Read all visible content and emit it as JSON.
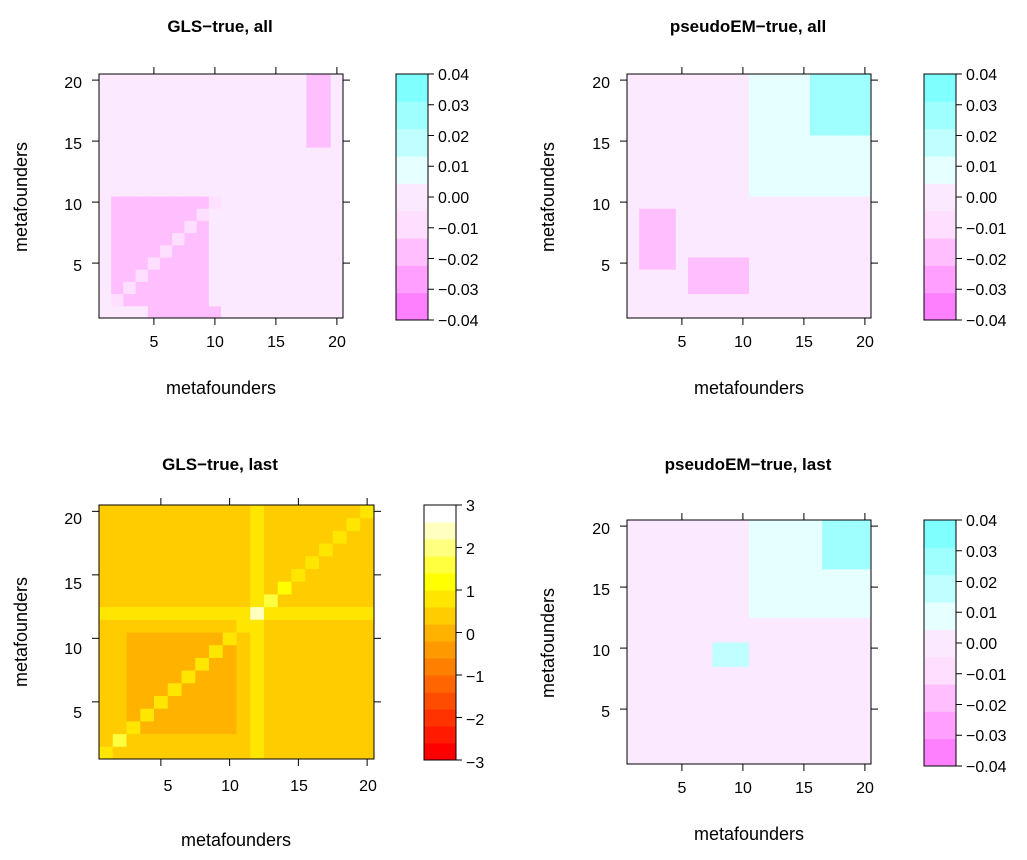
{
  "chart_data": [
    {
      "type": "heatmap",
      "title": "GLS−true, all",
      "xlabel": "metafounders",
      "ylabel": "metafounders",
      "x_ticks": [
        "5",
        "10",
        "15",
        "20"
      ],
      "y_ticks": [
        "5",
        "10",
        "15",
        "20"
      ],
      "xlim": [
        0.5,
        20.5
      ],
      "ylim": [
        0.5,
        20.5
      ],
      "colorbar": {
        "ticks": [
          "0.04",
          "0.03",
          "0.02",
          "0.01",
          "0.00",
          "−0.01",
          "−0.02",
          "−0.03",
          "−0.04"
        ],
        "range": [
          -0.04,
          0.04
        ],
        "colors": [
          "#ff80ff",
          "#ff9fff",
          "#ffbfff",
          "#ffdfff",
          "#fbe9ff",
          "#e6ffff",
          "#bfffff",
          "#9fffff",
          "#80ffff"
        ]
      },
      "pattern": "gls_all",
      "background_value": -0.005
    },
    {
      "type": "heatmap",
      "title": "pseudoEM−true, all",
      "xlabel": "metafounders",
      "ylabel": "metafounders",
      "x_ticks": [
        "5",
        "10",
        "15",
        "20"
      ],
      "y_ticks": [
        "5",
        "10",
        "15",
        "20"
      ],
      "xlim": [
        0.5,
        20.5
      ],
      "ylim": [
        0.5,
        20.5
      ],
      "colorbar": {
        "ticks": [
          "0.04",
          "0.03",
          "0.02",
          "0.01",
          "0.00",
          "−0.01",
          "−0.02",
          "−0.03",
          "−0.04"
        ],
        "range": [
          -0.04,
          0.04
        ],
        "colors": [
          "#ff80ff",
          "#ff9fff",
          "#ffbfff",
          "#ffdfff",
          "#fbe9ff",
          "#e6ffff",
          "#bfffff",
          "#9fffff",
          "#80ffff"
        ]
      },
      "pattern": "pem_all",
      "background_value": 0.005
    },
    {
      "type": "heatmap",
      "title": "GLS−true, last",
      "xlabel": "metafounders",
      "ylabel": "metafounders",
      "x_ticks": [
        "5",
        "10",
        "15",
        "20"
      ],
      "y_ticks": [
        "5",
        "10",
        "15",
        "20"
      ],
      "xlim": [
        0.5,
        20.5
      ],
      "ylim": [
        0.5,
        20.5
      ],
      "colorbar": {
        "ticks": [
          "3",
          "2",
          "1",
          "0",
          "−1",
          "−2",
          "−3"
        ],
        "range": [
          -3,
          3
        ],
        "colors": [
          "#ff0000",
          "#ff1a00",
          "#ff3300",
          "#ff4d00",
          "#ff6600",
          "#ff8000",
          "#ff9900",
          "#ffb300",
          "#ffcc00",
          "#ffe600",
          "#ffff00",
          "#ffff40",
          "#ffff80",
          "#ffffbf",
          "#ffffff"
        ]
      },
      "pattern": "gls_last",
      "background_value": 0.1
    },
    {
      "type": "heatmap",
      "title": "pseudoEM−true, last",
      "xlabel": "metafounders",
      "ylabel": "metafounders",
      "x_ticks": [
        "5",
        "10",
        "15",
        "20"
      ],
      "y_ticks": [
        "5",
        "10",
        "15",
        "20"
      ],
      "xlim": [
        0.5,
        20.5
      ],
      "ylim": [
        0.5,
        20.5
      ],
      "colorbar": {
        "ticks": [
          "0.04",
          "0.03",
          "0.02",
          "0.01",
          "0.00",
          "−0.01",
          "−0.02",
          "−0.03",
          "−0.04"
        ],
        "range": [
          -0.04,
          0.04
        ],
        "colors": [
          "#ff80ff",
          "#ff9fff",
          "#ffbfff",
          "#ffdfff",
          "#fbe9ff",
          "#e6ffff",
          "#bfffff",
          "#9fffff",
          "#80ffff"
        ]
      },
      "pattern": "pem_last",
      "background_value": 0.005
    }
  ]
}
